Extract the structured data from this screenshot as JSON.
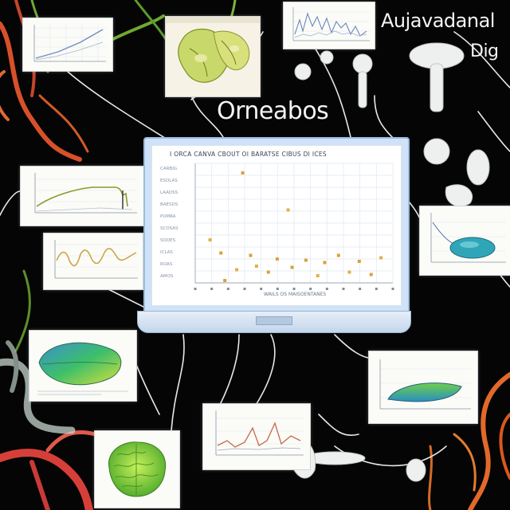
{
  "headings": {
    "main": "Orneabos",
    "top_right_line1": "Aujavadanal",
    "top_right_line2": "Dig"
  },
  "colors": {
    "background": "#050505",
    "vine_red": "#e0532a",
    "vine_green": "#6ea832",
    "screen_frame": "#cfe2f7",
    "chart_grid": "#dfe8f2",
    "scatter_point": "#d9a13a"
  },
  "center_chart": {
    "title": "I ORCA CANVA CBOUT OI BARATSE CIBUS DI ICES",
    "xlabel": "WAILS OS MAISOENTANES",
    "y_tick_labels": [
      "CARBIG",
      "ESOLAS",
      "LAADSS",
      "BAESDS",
      "PUMRA",
      "SCOSAS",
      "SOOES",
      "ICLAS",
      "ROAS",
      "AMOS"
    ],
    "chart_data": {
      "type": "scatter",
      "title": "I ORCA CANVA CBOUT OI BARATSE CIBUS DI ICES",
      "xlabel": "WAILS OS MAISOENTANES",
      "ylabel": "",
      "xlim": [
        0,
        20
      ],
      "ylim": [
        0,
        10
      ],
      "grid": true,
      "points": [
        {
          "x": 1.5,
          "y": 3.6
        },
        {
          "x": 2.6,
          "y": 2.5
        },
        {
          "x": 3.0,
          "y": 0.2
        },
        {
          "x": 4.2,
          "y": 1.1
        },
        {
          "x": 4.8,
          "y": 9.2
        },
        {
          "x": 5.6,
          "y": 2.3
        },
        {
          "x": 6.2,
          "y": 1.4
        },
        {
          "x": 7.4,
          "y": 0.9
        },
        {
          "x": 8.3,
          "y": 2.0
        },
        {
          "x": 9.4,
          "y": 6.1
        },
        {
          "x": 9.8,
          "y": 1.3
        },
        {
          "x": 11.2,
          "y": 1.9
        },
        {
          "x": 12.4,
          "y": 0.6
        },
        {
          "x": 13.1,
          "y": 1.7
        },
        {
          "x": 14.5,
          "y": 2.3
        },
        {
          "x": 15.6,
          "y": 0.9
        },
        {
          "x": 16.6,
          "y": 1.8
        },
        {
          "x": 17.8,
          "y": 0.7
        },
        {
          "x": 18.8,
          "y": 2.1
        }
      ]
    }
  },
  "thumbnails": [
    {
      "kind": "rising-line"
    },
    {
      "kind": "botanical-scan"
    },
    {
      "kind": "dense-line-chart"
    },
    {
      "kind": "plateau-line"
    },
    {
      "kind": "wave-line"
    },
    {
      "kind": "leaf-3d"
    },
    {
      "kind": "ellipsoid-3d"
    },
    {
      "kind": "leaf-side"
    },
    {
      "kind": "spike-line"
    },
    {
      "kind": "brain-model"
    }
  ]
}
